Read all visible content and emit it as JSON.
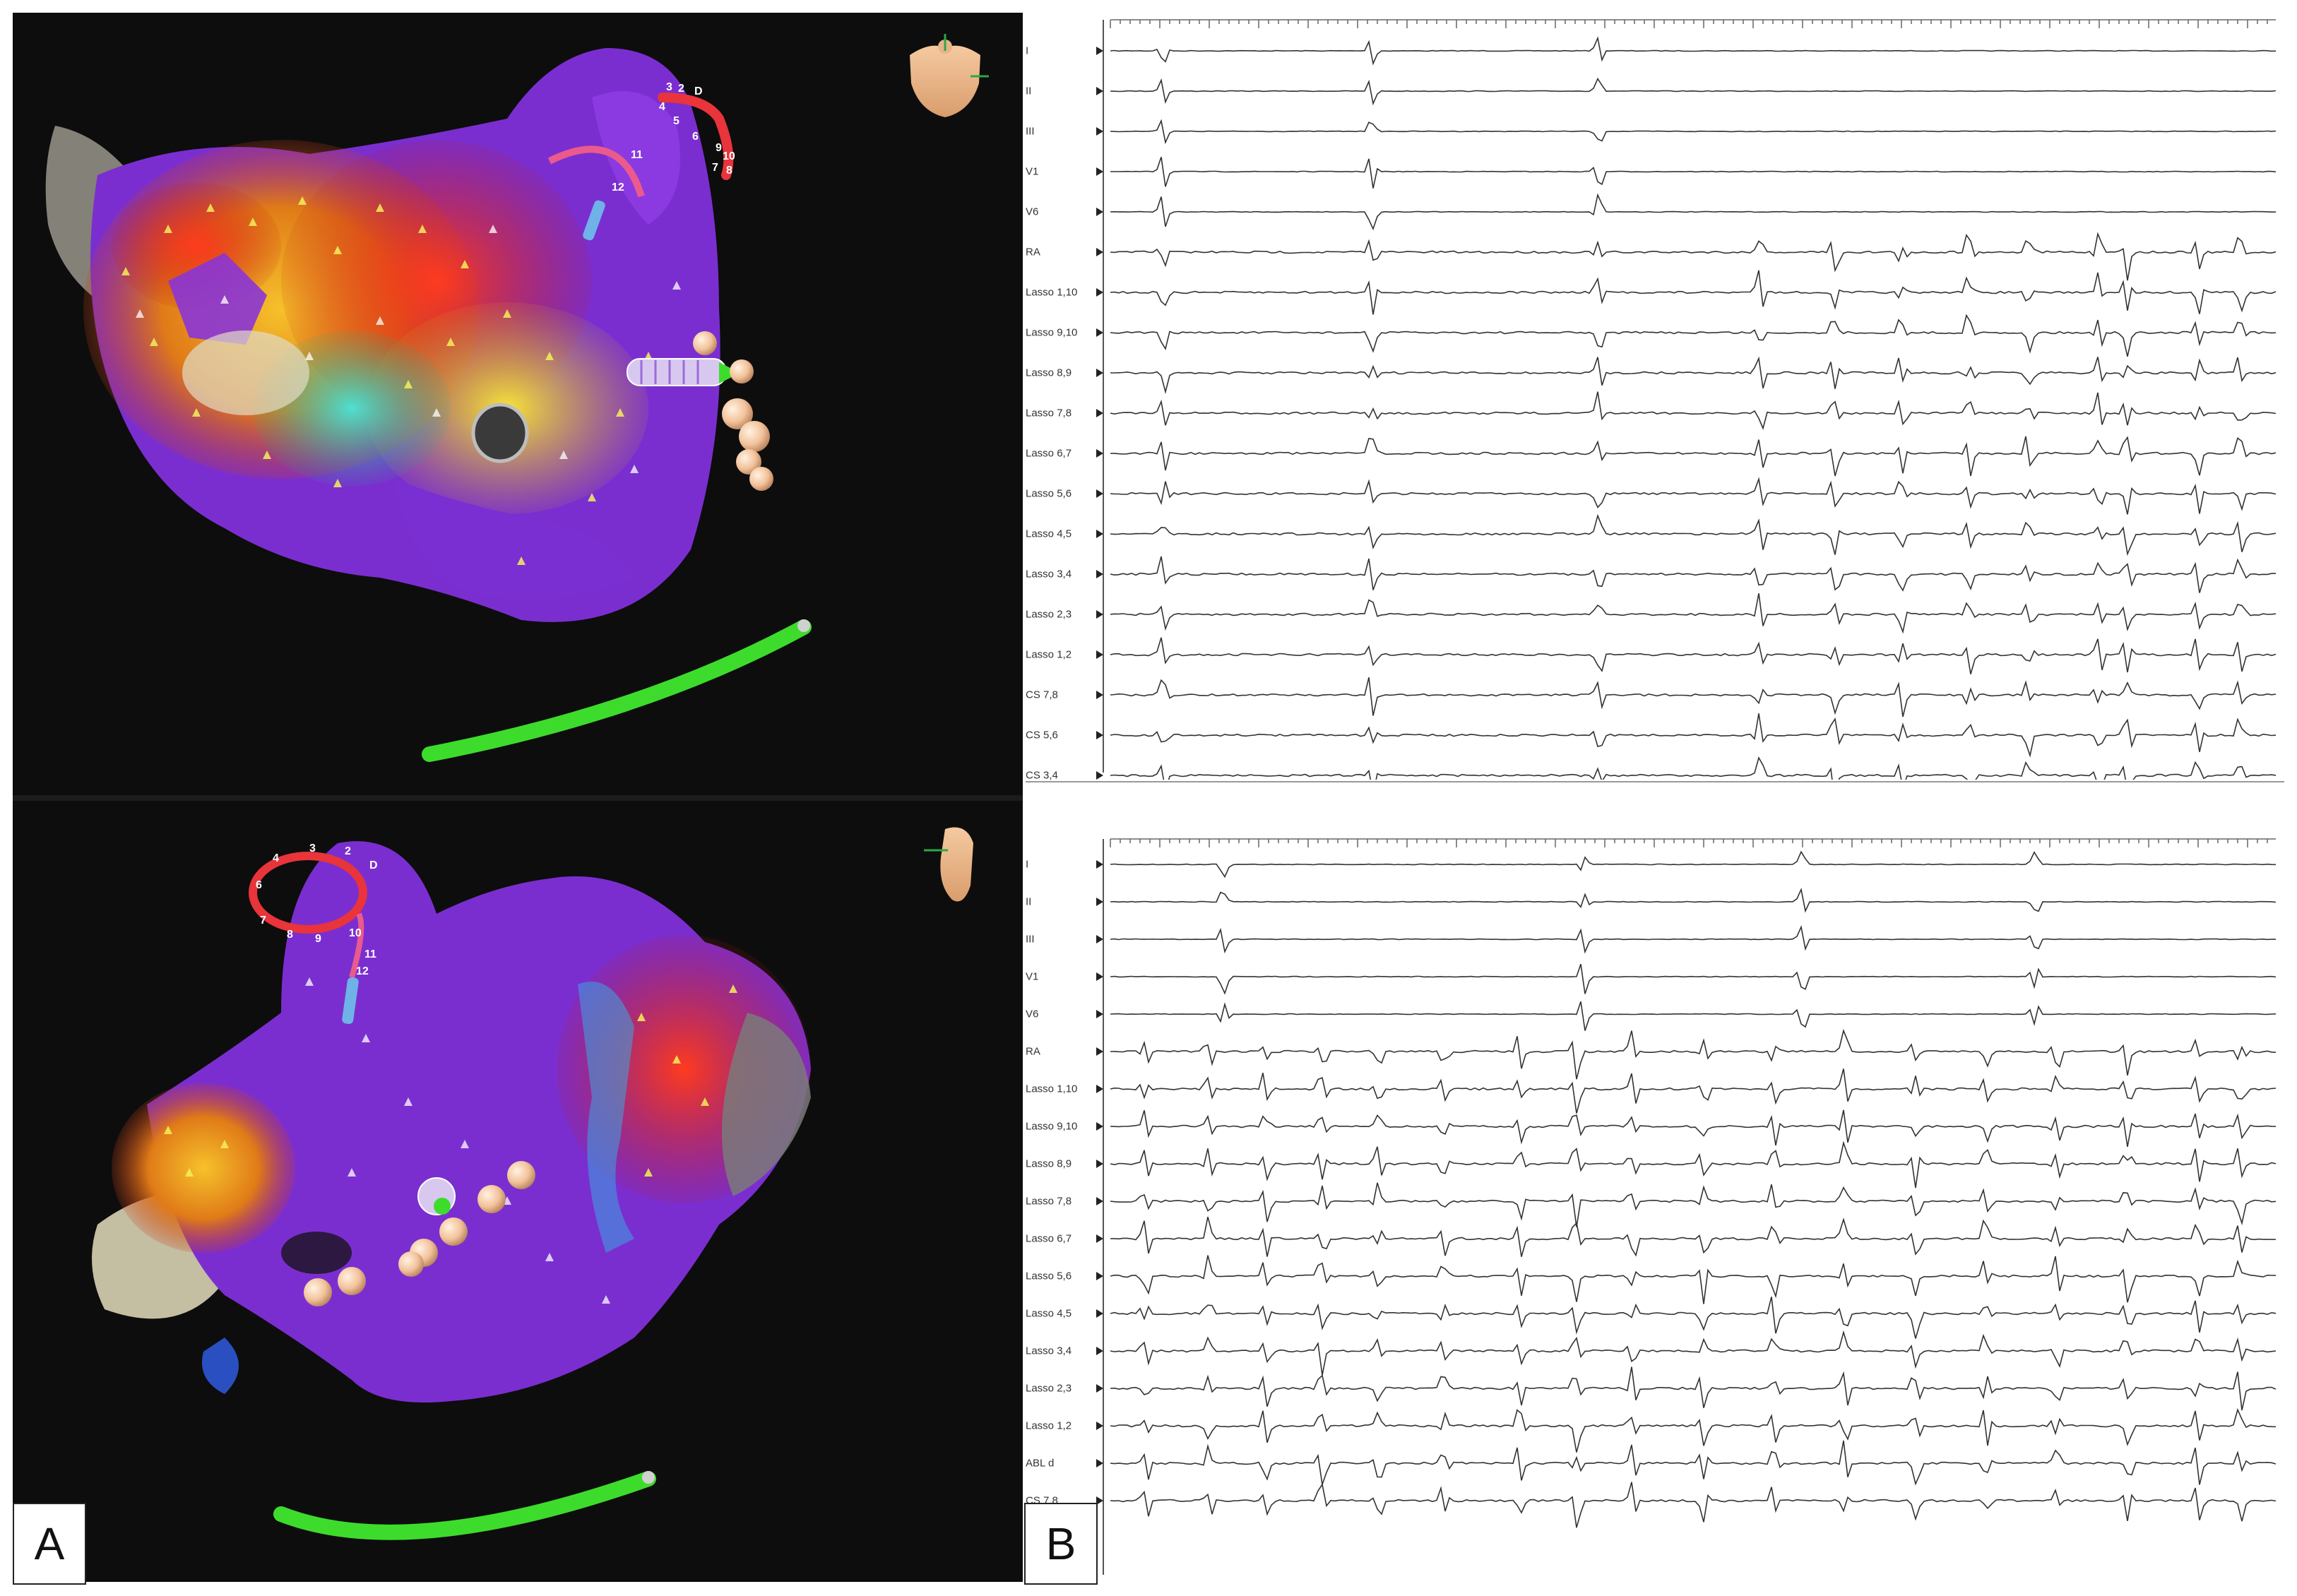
{
  "panels": {
    "left_label": "A",
    "right_label": "B"
  },
  "top_map": {
    "lasso_labels": [
      "3",
      "2",
      "D",
      "4",
      "5",
      "6",
      "10",
      "7",
      "8",
      "9",
      "11",
      "12"
    ]
  },
  "bottom_map": {
    "lasso_labels": [
      "3",
      "2",
      "D",
      "4",
      "6",
      "7",
      "8",
      "9",
      "10",
      "11",
      "12"
    ]
  },
  "ecg_top": {
    "traces": [
      "I",
      "II",
      "III",
      "V1",
      "V6",
      "RA",
      "Lasso 1,10",
      "Lasso 9,10",
      "Lasso 8,9",
      "Lasso 7,8",
      "Lasso 6,7",
      "Lasso 5,6",
      "Lasso 4,5",
      "Lasso 3,4",
      "Lasso 2,3",
      "Lasso 1,2",
      "CS 7,8",
      "CS 5,6",
      "CS 3,4"
    ]
  },
  "ecg_bottom": {
    "traces": [
      "I",
      "II",
      "III",
      "V1",
      "V6",
      "RA",
      "Lasso 1,10",
      "Lasso 9,10",
      "Lasso 8,9",
      "Lasso 7,8",
      "Lasso 6,7",
      "Lasso 5,6",
      "Lasso 4,5",
      "Lasso 3,4",
      "Lasso 2,3",
      "Lasso 1,2",
      "ABL d",
      "CS 7,8"
    ]
  },
  "colors": {
    "map_bg": "#0d0d0d",
    "scar_purple": "#7b2ed0",
    "catheter_green": "#3ddc2c",
    "lasso_red": "#e8343a",
    "ablation_dot": "#f2c29a",
    "trace": "#333333"
  }
}
